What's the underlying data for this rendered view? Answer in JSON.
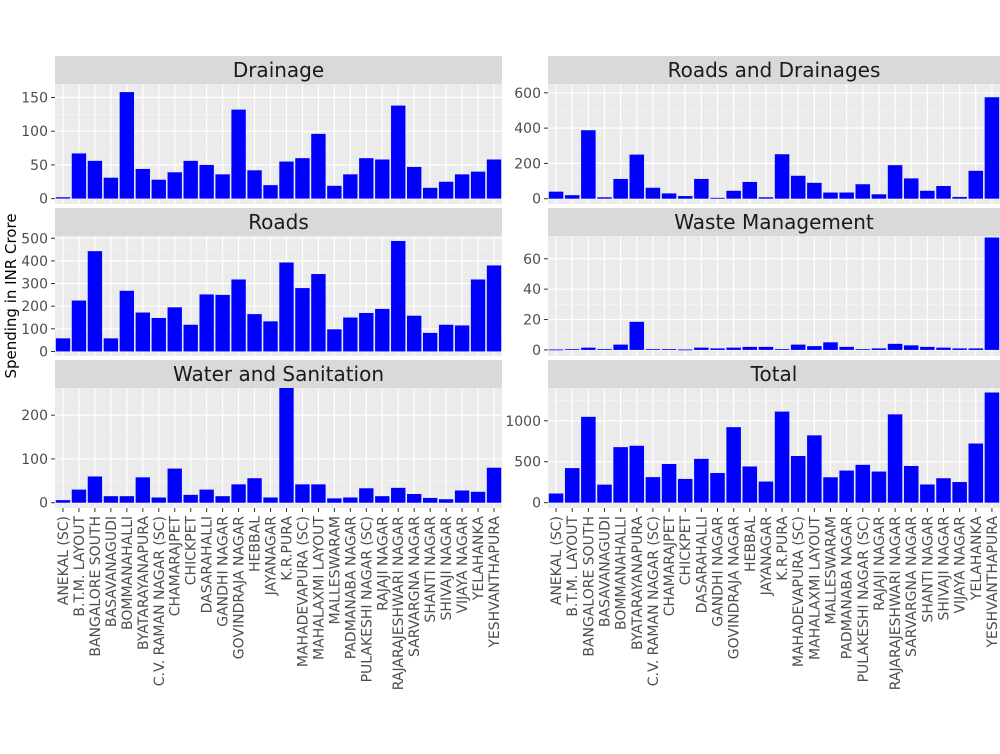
{
  "chart_data": {
    "type": "bar",
    "layout": "faceted 3x2 grid, shared x axis categories",
    "ylabel": "Spending in INR Crore",
    "xlabel": "",
    "bar_color": "#0000ff",
    "panel_bg": "#ebebeb",
    "strip_bg": "#d9d9d9",
    "grid_color": "#ffffff",
    "categories": [
      "ANEKAL (SC)",
      "B.T.M. LAYOUT",
      "BANGALORE SOUTH",
      "BASAVANAGUDI",
      "BOMMANAHALLI",
      "BYATARAYANAPURA",
      "C.V. RAMAN NAGAR (SC)",
      "CHAMARAJPET",
      "CHICKPET",
      "DASARAHALLI",
      "GANDHI NAGAR",
      "GOVINDRAJA NAGAR",
      "HEBBAL",
      "JAYANAGAR",
      "K.R.PURA",
      "MAHADEVAPURA (SC)",
      "MAHALAXMI LAYOUT",
      "MALLESWARAM",
      "PADMANABA NAGAR",
      "PULAKESHI NAGAR (SC)",
      "RAJAJI NAGAR",
      "RAJARAJESHWARI NAGAR",
      "SARVARGNA NAGAR",
      "SHANTI NAGAR",
      "SHIVAJI NAGAR",
      "VIJAYA NAGAR",
      "YELAHANKA",
      "YESHVANTHAPURA"
    ],
    "series": [
      {
        "name": "Drainage",
        "ylim": [
          -8,
          170
        ],
        "ticks": [
          0,
          50,
          100,
          150
        ],
        "values": [
          2,
          67,
          56,
          31,
          158,
          44,
          28,
          39,
          56,
          50,
          36,
          132,
          42,
          20,
          55,
          60,
          96,
          19,
          36,
          60,
          58,
          138,
          47,
          16,
          25,
          36,
          40,
          58
        ]
      },
      {
        "name": "Roads and Drainages",
        "ylim": [
          -30,
          650
        ],
        "ticks": [
          0,
          200,
          400,
          600
        ],
        "values": [
          40,
          20,
          388,
          8,
          112,
          250,
          62,
          30,
          15,
          112,
          5,
          45,
          95,
          8,
          252,
          130,
          90,
          35,
          35,
          82,
          25,
          190,
          115,
          45,
          72,
          10,
          158,
          575
        ]
      },
      {
        "name": "Roads",
        "ylim": [
          -20,
          510
        ],
        "ticks": [
          0,
          100,
          200,
          300,
          400,
          500
        ],
        "values": [
          58,
          225,
          443,
          58,
          268,
          172,
          148,
          195,
          118,
          252,
          250,
          318,
          165,
          133,
          393,
          280,
          342,
          98,
          150,
          170,
          188,
          488,
          158,
          82,
          118,
          115,
          318,
          380
        ]
      },
      {
        "name": "Waste Management",
        "ylim": [
          -4,
          75
        ],
        "ticks": [
          0,
          20,
          40,
          60
        ],
        "values": [
          0.3,
          0.5,
          1.5,
          0.5,
          3.5,
          18.5,
          0.5,
          0.5,
          0.3,
          1.5,
          1,
          1.5,
          2,
          2,
          0.5,
          3.5,
          2.5,
          5,
          2,
          0.5,
          1,
          4,
          3,
          2,
          1.5,
          1,
          1,
          74
        ]
      },
      {
        "name": "Water and Sanitation",
        "ylim": [
          -12,
          262
        ],
        "ticks": [
          0,
          100,
          200
        ],
        "values": [
          6,
          30,
          60,
          15,
          15,
          58,
          12,
          78,
          18,
          30,
          15,
          42,
          56,
          12,
          262,
          42,
          42,
          10,
          12,
          33,
          15,
          34,
          20,
          11,
          8,
          28,
          25,
          80
        ]
      },
      {
        "name": "Total",
        "ylim": [
          -65,
          1400
        ],
        "ticks": [
          0,
          500,
          1000
        ],
        "values": [
          112,
          422,
          1048,
          220,
          678,
          695,
          312,
          472,
          290,
          535,
          362,
          922,
          442,
          258,
          1112,
          570,
          822,
          310,
          392,
          462,
          380,
          1078,
          448,
          222,
          298,
          252,
          722,
          1345
        ]
      }
    ]
  }
}
